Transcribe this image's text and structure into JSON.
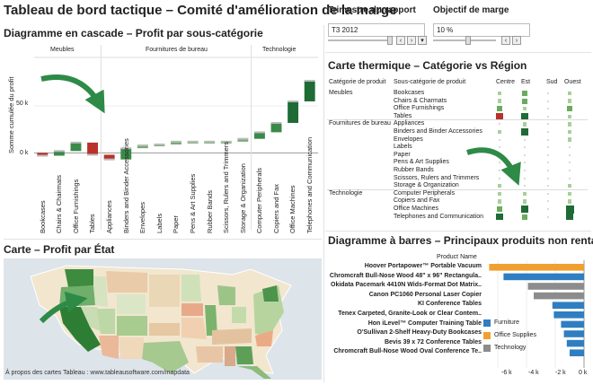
{
  "dashboard": {
    "title": "Tableau de bord tactique – Comité d'amélioration de la marge"
  },
  "controls": {
    "quarter": {
      "label": "Trimestre du rapport",
      "value": "T3 2012"
    },
    "margin": {
      "label": "Objectif de marge",
      "value": "10 %"
    }
  },
  "waterfall": {
    "title": "Diagramme en cascade – Profit par sous-catégorie",
    "ylabel": "Somme cumulée du profit",
    "yticks": [
      "50 k",
      "0 k"
    ],
    "groups": [
      "Meubles",
      "Fournitures de bureau",
      "Technologie"
    ]
  },
  "map": {
    "title": "Carte – Profit par État",
    "footer": "À propos des cartes Tableau : www.tableausoftware.com/mapdata"
  },
  "heatmap": {
    "title": "Carte thermique – Catégorie vs Région",
    "col_headers": [
      "Catégorie de produit",
      "Sous-catégorie de produit",
      "Centre",
      "Est",
      "Sud",
      "Ouest"
    ]
  },
  "barchart": {
    "title": "Diagramme à barres – Principaux produits non rentables",
    "header": "Product Name",
    "xticks": [
      "-6 k",
      "-4 k",
      "-2 k",
      "0 k"
    ],
    "legend": [
      "Furniture",
      "Office Supplies",
      "Technology"
    ]
  },
  "colors": {
    "furniture": "#2f7ec1",
    "office_supplies": "#f0a030",
    "technology": "#8c8c8c",
    "pos_dark": "#1e6b35",
    "neg": "#b8322a",
    "arrow": "#2e8a47"
  },
  "chart_data": [
    {
      "type": "bar",
      "title": "Diagramme en cascade – Profit par sous-catégorie",
      "ylabel": "Somme cumulée du profit",
      "categories": [
        "Bookcases",
        "Chairs & Chairmats",
        "Office Furnishings",
        "Tables",
        "Appliances",
        "Binders and Binder Accessories",
        "Envelopes",
        "Labels",
        "Paper",
        "Pens & Art Supplies",
        "Rubber Bands",
        "Scissors, Rulers and Trimmers",
        "Storage & Organization",
        "Computer Peripherals",
        "Copiers and Fax",
        "Office Machines",
        "Telephones and Communication"
      ],
      "groups": [
        {
          "name": "Meubles",
          "categories": [
            "Bookcases",
            "Chairs & Chairmats",
            "Office Furnishings",
            "Tables"
          ]
        },
        {
          "name": "Fournitures de bureau",
          "categories": [
            "Appliances",
            "Binders and Binder Accessories",
            "Envelopes",
            "Labels",
            "Paper",
            "Pens & Art Supplies",
            "Rubber Bands",
            "Scissors, Rulers and Trimmers",
            "Storage & Organization"
          ]
        },
        {
          "name": "Technologie",
          "categories": [
            "Computer Peripherals",
            "Copiers and Fax",
            "Office Machines",
            "Telephones and Communication"
          ]
        }
      ],
      "values": [
        -3,
        5,
        9,
        -13,
        -5,
        12,
        3,
        1,
        3,
        0,
        0,
        0,
        3,
        7,
        10,
        23,
        22
      ],
      "ylim": [
        -15,
        100
      ],
      "yticks": [
        0,
        50
      ]
    },
    {
      "type": "heatmap",
      "title": "Carte thermique – Catégorie vs Région",
      "columns": [
        "Centre",
        "Est",
        "Sud",
        "Ouest"
      ],
      "rows": [
        {
          "category": "Meubles",
          "subcategory": "Bookcases",
          "values": [
            1,
            2,
            0,
            1
          ]
        },
        {
          "category": "Meubles",
          "subcategory": "Chairs & Charmats",
          "values": [
            1,
            2,
            0,
            1
          ]
        },
        {
          "category": "Meubles",
          "subcategory": "Office Furnishings",
          "values": [
            2,
            1,
            0,
            2
          ]
        },
        {
          "category": "Meubles",
          "subcategory": "Tables",
          "values": [
            -3,
            3,
            0,
            1
          ]
        },
        {
          "category": "Fournitures de bureau",
          "subcategory": "Appliances",
          "values": [
            0,
            1,
            0,
            1
          ]
        },
        {
          "category": "Fournitures de bureau",
          "subcategory": "Binders and Binder Accessories",
          "values": [
            1,
            3,
            0,
            1
          ]
        },
        {
          "category": "Fournitures de bureau",
          "subcategory": "Envelopes",
          "values": [
            0,
            0,
            0,
            1
          ]
        },
        {
          "category": "Fournitures de bureau",
          "subcategory": "Labels",
          "values": [
            0,
            0,
            0,
            0
          ]
        },
        {
          "category": "Fournitures de bureau",
          "subcategory": "Paper",
          "values": [
            1,
            0,
            0,
            0
          ]
        },
        {
          "category": "Fournitures de bureau",
          "subcategory": "Pens & Art Supplies",
          "values": [
            0,
            0,
            0,
            0
          ]
        },
        {
          "category": "Fournitures de bureau",
          "subcategory": "Rubber Bands",
          "values": [
            0,
            0,
            0,
            0
          ]
        },
        {
          "category": "Fournitures de bureau",
          "subcategory": "Scissors, Rulers and Trimmers",
          "values": [
            0,
            0,
            0,
            0
          ]
        },
        {
          "category": "Fournitures de bureau",
          "subcategory": "Storage & Organization",
          "values": [
            1,
            0,
            0,
            1
          ]
        },
        {
          "category": "Technologie",
          "subcategory": "Computer Peripherals",
          "values": [
            1,
            1,
            0,
            1
          ]
        },
        {
          "category": "Technologie",
          "subcategory": "Copiers and Fax",
          "values": [
            1,
            1,
            0,
            1
          ]
        },
        {
          "category": "Technologie",
          "subcategory": "Office Machines",
          "values": [
            2,
            3,
            0,
            4
          ]
        },
        {
          "category": "Technologie",
          "subcategory": "Telephones and Communication",
          "values": [
            3,
            2,
            0,
            3
          ]
        }
      ]
    },
    {
      "type": "bar",
      "title": "Diagramme à barres – Principaux produits non rentables",
      "xlabel": "",
      "ylabel": "Product Name",
      "categories": [
        "Hoover Portapower™ Portable Vacuum",
        "Chromcraft Bull-Nose Wood 48\" x 96\" Rectangula..",
        "Okidata Pacemark 4410N Wids-Format Dot Matrix..",
        "Canon PC1060 Personal Laser Copier",
        "KI Conference Tables",
        "Tenex Carpeted, Granite-Look or Clear Contem..",
        "Hon iLevel™ Computer Training Table",
        "O'Sullivan 2-Shelf Heavy-Duty Bookcases",
        "Bevis 39 x 72 Conference Tables",
        "Chromcraft Bull-Nose Wood Oval Conference Te.."
      ],
      "series_by_item": [
        "Office Supplies",
        "Furniture",
        "Technology",
        "Technology",
        "Furniture",
        "Furniture",
        "Furniture",
        "Furniture",
        "Furniture",
        "Furniture"
      ],
      "values": [
        -6.6,
        -5.6,
        -3.9,
        -3.5,
        -2.2,
        -2.1,
        -1.6,
        -1.4,
        -1.2,
        -1.0
      ],
      "xlim": [
        -7,
        0
      ],
      "xticks": [
        -6,
        -4,
        -2,
        0
      ]
    }
  ]
}
